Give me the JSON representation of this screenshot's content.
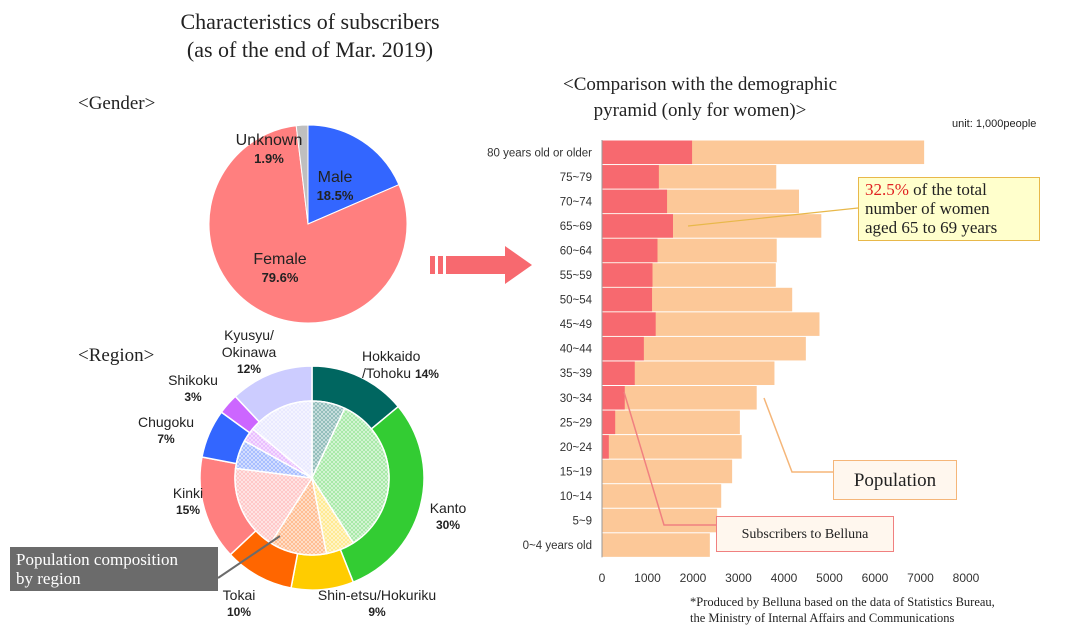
{
  "title": {
    "line1": "Characteristics of subscribers",
    "line2": "(as of the end of Mar. 2019)"
  },
  "gender": {
    "heading": "<Gender>"
  },
  "region": {
    "heading": "<Region>"
  },
  "pyramid": {
    "heading_line1": "<Comparison with the demographic",
    "heading_line2": "pyramid (only for women)>",
    "unit": "unit: 1,000people"
  },
  "callout": {
    "highlight": "32.5%",
    "line1_rest": " of the total",
    "line2": "number of women",
    "line3": "aged 65 to 69 years"
  },
  "labels": {
    "population": "Population",
    "subscribers": "Subscribers to Belluna",
    "population_composition_line1": "Population composition",
    "population_composition_line2": "by region"
  },
  "note": {
    "line1": "*Produced by Belluna  based on the data of Statistics Bureau,",
    "line2": "the Ministry  of Internal Affairs and Communications"
  },
  "colors": {
    "male": "#3366ff",
    "female": "#ff7f7f",
    "unknown": "#bfbfbf",
    "population": "#fcc898",
    "subscribers": "#f7696f",
    "hokkaido": "#006660",
    "kanto": "#33cc33",
    "shinetsu": "#ffcc00",
    "tokai": "#ff6600",
    "kinki": "#ff7f7f",
    "chugoku": "#3366ff",
    "shikoku": "#cc66ff",
    "kyusyu": "#ccccff"
  },
  "chart_data": [
    {
      "type": "pie",
      "categories": [
        "Male",
        "Female",
        "Unknown"
      ],
      "values": [
        18.5,
        79.6,
        1.9
      ],
      "display": [
        "18.5%",
        "79.6%",
        "1.9%"
      ]
    },
    {
      "type": "pie",
      "categories": [
        "Hokkaido\n/Tohoku",
        "Kanto",
        "Shin-etsu/Hokuriku",
        "Tokai",
        "Kinki",
        "Chugoku",
        "Shikoku",
        "Kyusyu/\nOkinawa"
      ],
      "values": [
        14,
        30,
        9,
        10,
        15,
        7,
        3,
        12
      ],
      "display": [
        "14%",
        "30%",
        "9%",
        "10%",
        "15%",
        "7%",
        "3%",
        "12%"
      ],
      "inner_values": [
        7,
        34,
        6,
        12,
        18,
        6,
        3,
        14
      ]
    },
    {
      "type": "bar",
      "orientation": "horizontal",
      "categories": [
        "80 years old or older",
        "75~79",
        "70~74",
        "65~69",
        "60~64",
        "55~59",
        "50~54",
        "45~49",
        "40~44",
        "35~39",
        "30~34",
        "25~29",
        "20~24",
        "15~19",
        "10~14",
        "5~9",
        "0~4 years old"
      ],
      "series": [
        {
          "name": "Population",
          "values": [
            7080,
            3830,
            4330,
            4820,
            3840,
            3820,
            4180,
            4780,
            4480,
            3790,
            3400,
            3030,
            3070,
            2860,
            2620,
            2530,
            2370
          ]
        },
        {
          "name": "Subscribers to Belluna",
          "values": [
            1980,
            1250,
            1430,
            1560,
            1220,
            1110,
            1100,
            1180,
            920,
            720,
            500,
            290,
            150,
            0,
            0,
            0,
            0
          ]
        }
      ],
      "xlim": [
        0,
        8000
      ],
      "xticks": [
        0,
        1000,
        2000,
        3000,
        4000,
        5000,
        6000,
        7000,
        8000
      ]
    }
  ]
}
